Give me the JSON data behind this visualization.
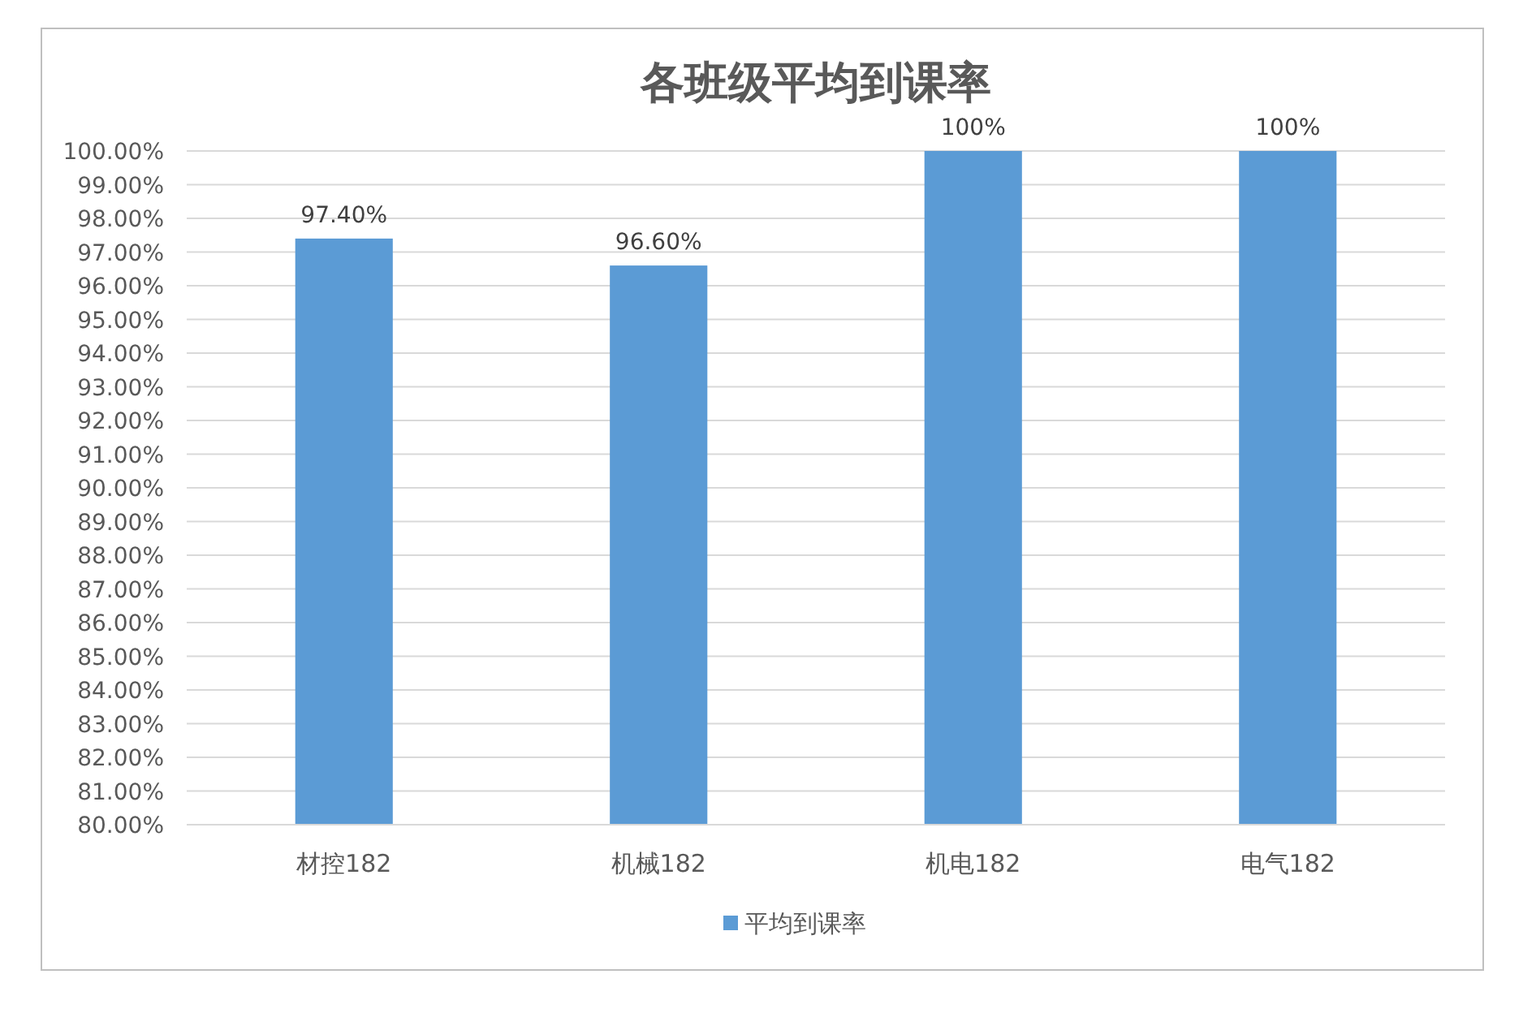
{
  "chart_data": {
    "type": "bar",
    "title": "各班级平均到课率",
    "categories": [
      "材控182",
      "机械182",
      "机电182",
      "电气182"
    ],
    "series": [
      {
        "name": "平均到课率",
        "color": "#5b9bd5",
        "values": [
          97.4,
          96.6,
          100,
          100
        ],
        "value_labels": [
          "97.40%",
          "96.60%",
          "100%",
          "100%"
        ]
      }
    ],
    "ylim": [
      80,
      100
    ],
    "yticks": [
      {
        "value": 80,
        "label": "80.00%"
      },
      {
        "value": 81,
        "label": "81.00%"
      },
      {
        "value": 82,
        "label": "82.00%"
      },
      {
        "value": 83,
        "label": "83.00%"
      },
      {
        "value": 84,
        "label": "84.00%"
      },
      {
        "value": 85,
        "label": "85.00%"
      },
      {
        "value": 86,
        "label": "86.00%"
      },
      {
        "value": 87,
        "label": "87.00%"
      },
      {
        "value": 88,
        "label": "88.00%"
      },
      {
        "value": 89,
        "label": "89.00%"
      },
      {
        "value": 90,
        "label": "90.00%"
      },
      {
        "value": 91,
        "label": "91.00%"
      },
      {
        "value": 92,
        "label": "92.00%"
      },
      {
        "value": 93,
        "label": "93.00%"
      },
      {
        "value": 94,
        "label": "94.00%"
      },
      {
        "value": 95,
        "label": "95.00%"
      },
      {
        "value": 96,
        "label": "96.00%"
      },
      {
        "value": 97,
        "label": "97.00%"
      },
      {
        "value": 98,
        "label": "98.00%"
      },
      {
        "value": 99,
        "label": "99.00%"
      },
      {
        "value": 100,
        "label": "100.00%"
      }
    ],
    "grid": "y",
    "legend": "bottom"
  }
}
